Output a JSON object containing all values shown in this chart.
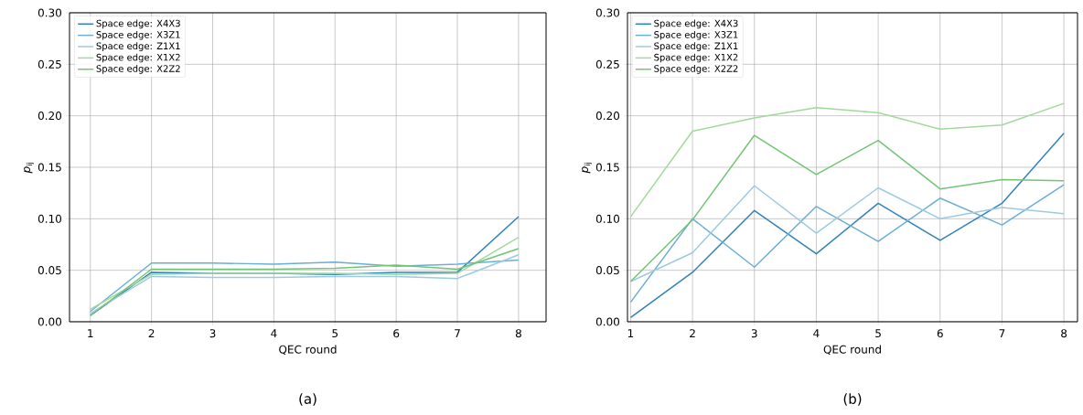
{
  "chart_data": [
    {
      "type": "line",
      "xlabel": "QEC round",
      "ylabel": "*p*$_{ij}$",
      "annotations": [
        "(a)"
      ],
      "x": [
        1,
        2,
        3,
        4,
        5,
        6,
        7,
        8
      ],
      "series": [
        {
          "name": "Space edge: X4X3",
          "color": "#3182bd",
          "values": [
            0.006,
            0.048,
            0.047,
            0.047,
            0.046,
            0.048,
            0.048,
            0.102
          ]
        },
        {
          "name": "Space edge: X3Z1",
          "color": "#6baed6",
          "values": [
            0.01,
            0.057,
            0.057,
            0.056,
            0.058,
            0.054,
            0.056,
            0.06
          ]
        },
        {
          "name": "Space edge: Z1X1",
          "color": "#9ecae1",
          "values": [
            0.008,
            0.044,
            0.043,
            0.043,
            0.044,
            0.044,
            0.042,
            0.065
          ]
        },
        {
          "name": "Space edge: X1X2",
          "color": "#a1d99b",
          "values": [
            0.012,
            0.046,
            0.047,
            0.047,
            0.047,
            0.046,
            0.047,
            0.082
          ]
        },
        {
          "name": "Space edge: X2Z2",
          "color": "#74c476",
          "values": [
            0.006,
            0.051,
            0.051,
            0.051,
            0.052,
            0.055,
            0.051,
            0.071
          ]
        }
      ],
      "xlim": [
        0.66,
        8.45
      ],
      "ylim": [
        0,
        0.3
      ],
      "xticks": [
        1,
        2,
        3,
        4,
        5,
        6,
        7,
        8
      ],
      "yticks": [
        {
          "value": 0,
          "label": "0.00"
        },
        0.05,
        {
          "value": 0.1,
          "label": "0.10"
        },
        0.15,
        {
          "value": 0.2,
          "label": "0.20"
        },
        0.25,
        {
          "value": 0.3,
          "label": "0.30"
        }
      ],
      "grid": true,
      "legend": "top left",
      "marker": "none",
      "line_style": "solid"
    },
    {
      "type": "line",
      "xlabel": "QEC round",
      "ylabel": "*p*$_{ij}$",
      "annotations": [
        "(b)"
      ],
      "x": [
        1,
        2,
        3,
        4,
        5,
        6,
        7,
        8
      ],
      "series": [
        {
          "name": "Space edge: X4X3",
          "color": "#3182bd",
          "values": [
            0.004,
            0.048,
            0.108,
            0.066,
            0.115,
            0.079,
            0.115,
            0.183
          ]
        },
        {
          "name": "Space edge: X3Z1",
          "color": "#6baed6",
          "values": [
            0.019,
            0.1,
            0.053,
            0.112,
            0.078,
            0.12,
            0.094,
            0.133
          ]
        },
        {
          "name": "Space edge: Z1X1",
          "color": "#9ecae1",
          "values": [
            0.039,
            0.067,
            0.132,
            0.086,
            0.13,
            0.1,
            0.111,
            0.105
          ]
        },
        {
          "name": "Space edge: X1X2",
          "color": "#a1d99b",
          "values": [
            0.102,
            0.185,
            0.198,
            0.208,
            0.203,
            0.187,
            0.191,
            0.212
          ]
        },
        {
          "name": "Space edge: X2Z2",
          "color": "#74c476",
          "values": [
            0.039,
            0.099,
            0.181,
            0.143,
            0.176,
            0.129,
            0.138,
            0.137
          ]
        }
      ],
      "xlim": [
        0.95,
        8.22
      ],
      "ylim": [
        0,
        0.3
      ],
      "xticks": [
        1,
        2,
        3,
        4,
        5,
        6,
        7,
        8
      ],
      "yticks": [
        {
          "value": 0,
          "label": "0.00"
        },
        0.05,
        {
          "value": 0.1,
          "label": "0.10"
        },
        0.15,
        {
          "value": 0.2,
          "label": "0.20"
        },
        0.25,
        {
          "value": 0.3,
          "label": "0.30"
        }
      ],
      "grid": true,
      "legend": "top left",
      "marker": "none",
      "line_style": "solid"
    }
  ]
}
